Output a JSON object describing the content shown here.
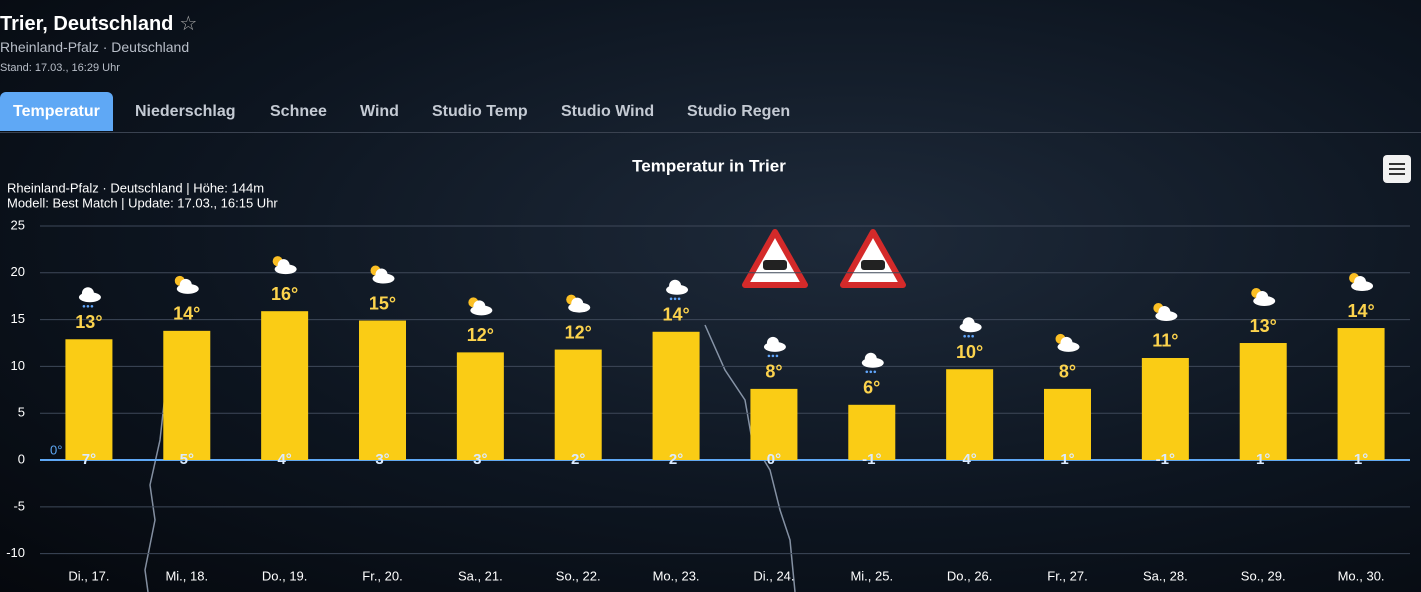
{
  "header": {
    "title": "Trier, Deutschland",
    "favorite_icon": "☆",
    "subtitle": "Rheinland-Pfalz · Deutschland",
    "stand": "Stand: 17.03., 16:29 Uhr"
  },
  "tabs": [
    "Temperatur",
    "Niederschlag",
    "Schnee",
    "Wind",
    "Studio Temp",
    "Studio Wind",
    "Studio Regen"
  ],
  "chart_data": {
    "type": "bar",
    "title": "Temperatur in Trier",
    "info": [
      "Rheinland-Pfalz · Deutschland | Höhe: 144m",
      "Modell: Best Match | Update: 17.03., 16:15 Uhr"
    ],
    "categories": [
      "Di., 17.",
      "Mi., 18.",
      "Do., 19.",
      "Fr., 20.",
      "Sa., 21.",
      "So., 22.",
      "Mo., 23.",
      "Di., 24.",
      "Mi., 25.",
      "Do., 26.",
      "Fr., 27.",
      "Sa., 28.",
      "So., 29.",
      "Mo., 30."
    ],
    "values": [
      12.9,
      13.8,
      15.9,
      14.9,
      11.5,
      11.8,
      13.7,
      7.6,
      5.9,
      9.7,
      7.6,
      10.9,
      12.5,
      14.1
    ],
    "value_labels": [
      "13°",
      "14°",
      "16°",
      "15°",
      "12°",
      "12°",
      "14°",
      "8°",
      "6°",
      "10°",
      "8°",
      "11°",
      "13°",
      "14°"
    ],
    "min_labels": [
      "7°",
      "5°",
      "4°",
      "3°",
      "3°",
      "2°",
      "2°",
      "0°",
      "-1°",
      "4°",
      "1°",
      "-1°",
      "1°",
      "1°"
    ],
    "zero_line_label": "0°",
    "color": "#facc15",
    "ylim": [
      -11,
      25
    ],
    "yticks": [
      -10,
      -5,
      0,
      5,
      10,
      15,
      20,
      25
    ],
    "grid": true
  }
}
